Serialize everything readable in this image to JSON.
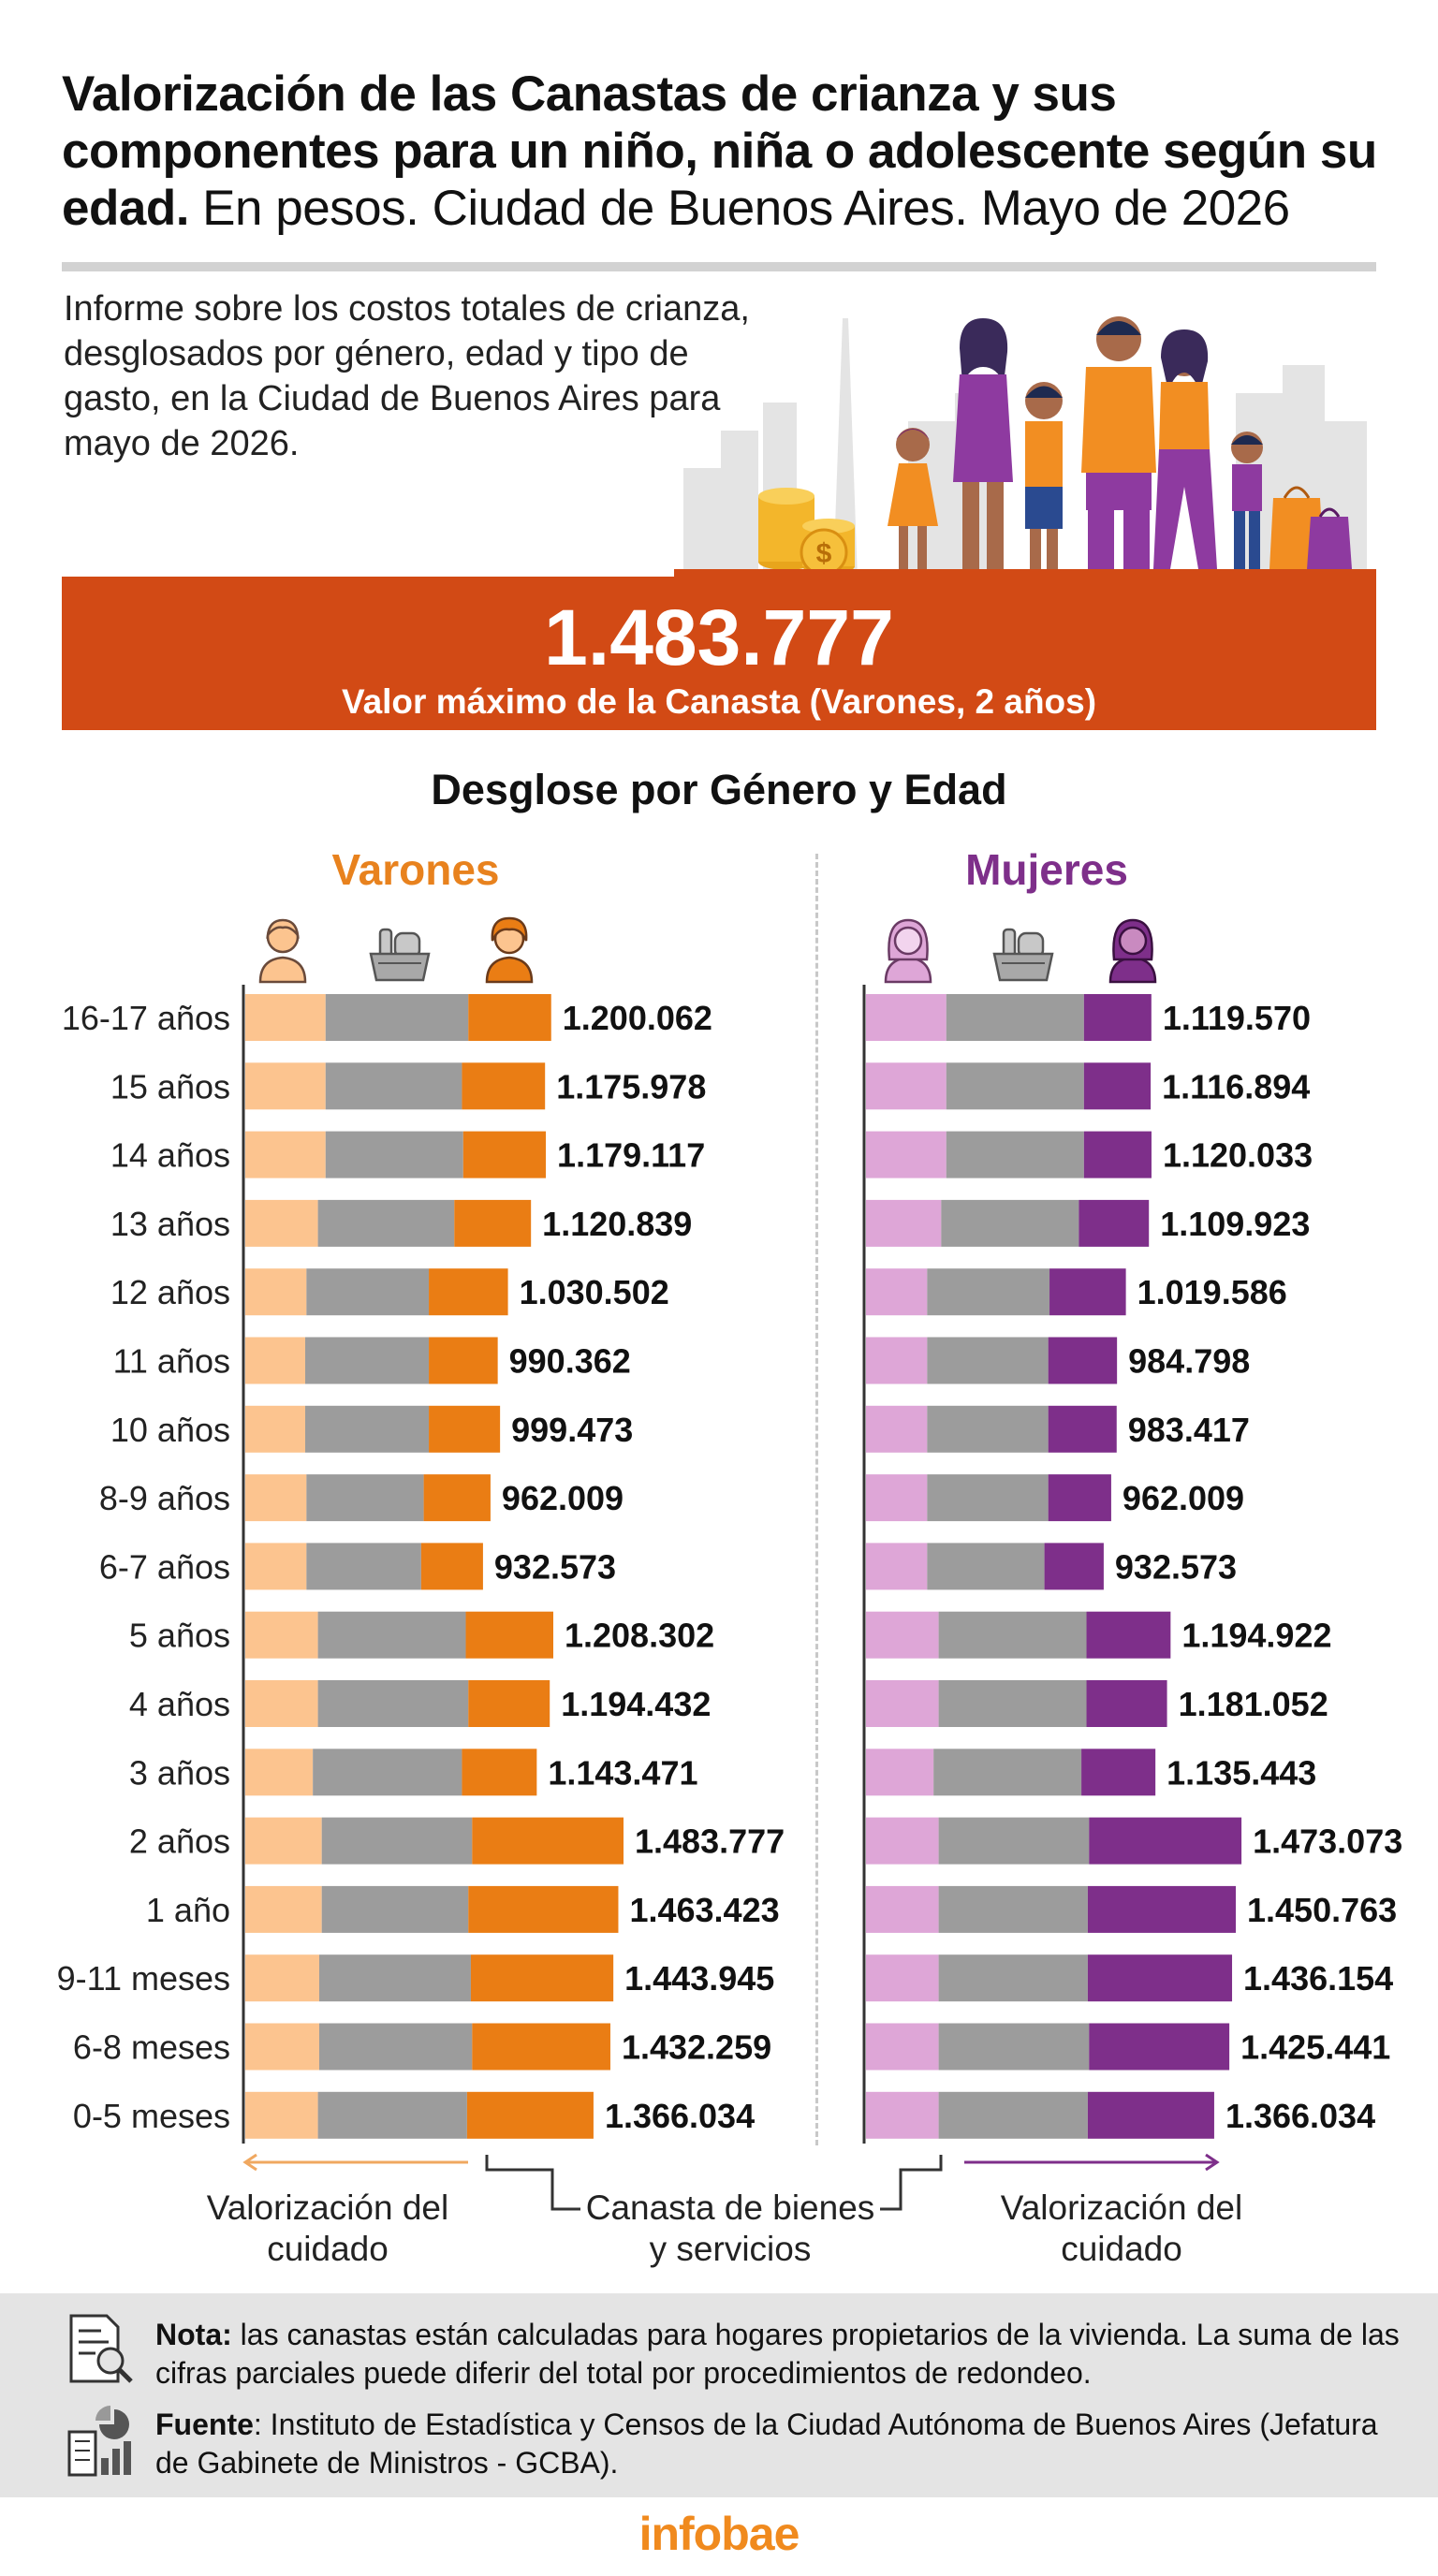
{
  "title": {
    "bold": "Valorización de las Canastas de crianza y sus componentes para un niño, niña o adolescente según su edad.",
    "regular": "En pesos. Ciudad de Buenos Aires. Mayo de 2026"
  },
  "intro": "Informe sobre los costos totales de crianza, desglosados por género, edad y tipo de gasto, en la Ciudad de Buenos Aires para mayo de 2026.",
  "banner": {
    "value": "1.483.777",
    "label": "Valor máximo de la Canasta (Varones, 2 años)"
  },
  "section_title": "Desglose por Género y Edad",
  "colors": {
    "banner": "#d24a15",
    "male_light": "#fcc48f",
    "male_dark": "#ea7d14",
    "female_light": "#dea6d7",
    "female_dark": "#7e2f8a",
    "grey": "#9c9c9c"
  },
  "chart_data": {
    "type": "bar",
    "orientation": "horizontal",
    "stacked": true,
    "categories": [
      "16-17 años",
      "15 años",
      "14 años",
      "13 años",
      "12 años",
      "11 años",
      "10 años",
      "8-9 años",
      "6-7 años",
      "5 años",
      "4 años",
      "3 años",
      "2 años",
      "1 año",
      "9-11 meses",
      "6-8 meses",
      "0-5 meses"
    ],
    "component_labels": [
      "Valorización del cuidado",
      "Canasta de bienes y servicios",
      "Valorización del cuidado"
    ],
    "panels": [
      {
        "name": "Varones",
        "totals": [
          1200062,
          1175978,
          1179117,
          1120839,
          1030502,
          990362,
          999473,
          962009,
          932573,
          1208302,
          1194432,
          1143471,
          1483777,
          1463423,
          1443945,
          1432259,
          1366034
        ],
        "total_labels": [
          "1.200.062",
          "1.175.978",
          "1.179.117",
          "1.120.839",
          "1.030.502",
          "990.362",
          "999.473",
          "962.009",
          "932.573",
          "1.208.302",
          "1.194.432",
          "1.143.471",
          "1.483.777",
          "1.463.423",
          "1.443.945",
          "1.432.259",
          "1.366.034"
        ],
        "segments": [
          {
            "name": "Valorización del cuidado",
            "values": [
              315000,
              315000,
              315000,
              285000,
              240000,
              235000,
              235000,
              240000,
              240000,
              285000,
              285000,
              265000,
              300000,
              300000,
              290000,
              290000,
              285000
            ]
          },
          {
            "name": "Canasta de bienes y servicios",
            "values": [
              560000,
              535000,
              540000,
              535000,
              480000,
              485000,
              485000,
              460000,
              450000,
              580000,
              590000,
              585000,
              590000,
              575000,
              595000,
              600000,
              585000
            ]
          },
          {
            "name": "Valorización del cuidado",
            "values": [
              325062,
              325978,
              324117,
              300839,
              310502,
              270362,
              279473,
              262009,
              242573,
              343302,
              319432,
              293471,
              593777,
              588423,
              558945,
              542259,
              496034
            ]
          }
        ]
      },
      {
        "name": "Mujeres",
        "totals": [
          1119570,
          1116894,
          1120033,
          1109923,
          1019586,
          984798,
          983417,
          962009,
          932573,
          1194922,
          1181052,
          1135443,
          1473073,
          1450763,
          1436154,
          1425441,
          1366034
        ],
        "total_labels": [
          "1.119.570",
          "1.116.894",
          "1.120.033",
          "1.109.923",
          "1.019.586",
          "984.798",
          "983.417",
          "962.009",
          "932.573",
          "1.194.922",
          "1.181.052",
          "1.135.443",
          "1.473.073",
          "1.450.763",
          "1.436.154",
          "1.425.441",
          "1.366.034"
        ],
        "segments": [
          {
            "name": "Valorización del cuidado",
            "values": [
              315000,
              315000,
              315000,
              295000,
              240000,
              240000,
              240000,
              240000,
              240000,
              285000,
              285000,
              265000,
              285000,
              285000,
              285000,
              285000,
              285000
            ]
          },
          {
            "name": "Canasta de bienes y servicios",
            "values": [
              540000,
              540000,
              540000,
              540000,
              480000,
              475000,
              475000,
              475000,
              460000,
              580000,
              580000,
              580000,
              590000,
              585000,
              585000,
              590000,
              585000
            ]
          },
          {
            "name": "Valorización del cuidado",
            "values": [
              264570,
              261894,
              265033,
              274923,
              299586,
              269798,
              268417,
              247009,
              232573,
              329922,
              316052,
              290443,
              598073,
              580763,
              566154,
              550441,
              496034
            ]
          }
        ]
      }
    ]
  },
  "legend": {
    "male_care": "Valorización del cuidado",
    "basket": "Canasta de bienes y servicios",
    "female_care": "Valorización del cuidado"
  },
  "footer": {
    "note_label": "Nota:",
    "note_text": " las canastas están calculadas para hogares propietarios de la vivienda. La suma de las cifras parciales puede diferir del total por procedimientos de redondeo.",
    "source_label": "Fuente",
    "source_text": ": Instituto de Estadística y Censos de la Ciudad Autónoma de Buenos Aires (Jefatura de Gabinete de Ministros - GCBA)."
  },
  "brand": "infobae"
}
